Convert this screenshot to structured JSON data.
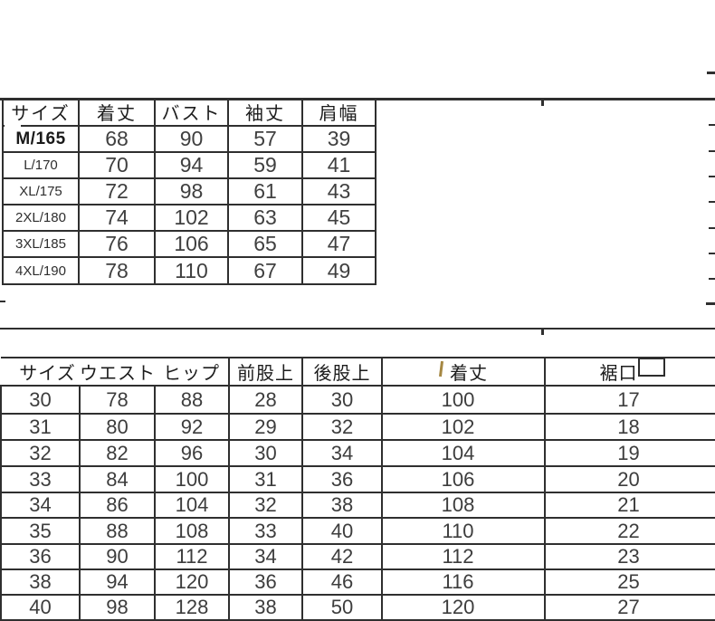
{
  "colors": {
    "background": "#ffffff",
    "grid_line": "#2f2f2f",
    "header_text": "#1c1c1c",
    "number_text": "#3d3d3d",
    "artifact_stroke": "#9b7a2e"
  },
  "top_table": {
    "headers": [
      "サイズ",
      "着丈",
      "バスト",
      "袖丈",
      "肩幅"
    ],
    "rows": [
      {
        "size": "M/165",
        "values": [
          "68",
          "90",
          "57",
          "39"
        ]
      },
      {
        "size": "L/170",
        "values": [
          "70",
          "94",
          "59",
          "41"
        ]
      },
      {
        "size": "XL/175",
        "values": [
          "72",
          "98",
          "61",
          "43"
        ]
      },
      {
        "size": "2XL/180",
        "values": [
          "74",
          "102",
          "63",
          "45"
        ]
      },
      {
        "size": "3XL/185",
        "values": [
          "76",
          "106",
          "65",
          "47"
        ]
      },
      {
        "size": "4XL/190",
        "values": [
          "78",
          "110",
          "67",
          "49"
        ]
      }
    ]
  },
  "bottom_table": {
    "headers": [
      "サイズ",
      "ウエスト",
      "ヒップ",
      "前股上",
      "後股上",
      "着丈",
      "裾口"
    ],
    "rows": [
      [
        "30",
        "78",
        "88",
        "28",
        "30",
        "100",
        "17"
      ],
      [
        "31",
        "80",
        "92",
        "29",
        "32",
        "102",
        "18"
      ],
      [
        "32",
        "82",
        "96",
        "30",
        "34",
        "104",
        "19"
      ],
      [
        "33",
        "84",
        "100",
        "31",
        "36",
        "106",
        "20"
      ],
      [
        "34",
        "86",
        "104",
        "32",
        "38",
        "108",
        "21"
      ],
      [
        "35",
        "88",
        "108",
        "33",
        "40",
        "110",
        "22"
      ],
      [
        "36",
        "90",
        "112",
        "34",
        "42",
        "112",
        "23"
      ],
      [
        "38",
        "94",
        "120",
        "36",
        "46",
        "116",
        "25"
      ],
      [
        "40",
        "98",
        "128",
        "38",
        "50",
        "120",
        "27"
      ]
    ]
  }
}
